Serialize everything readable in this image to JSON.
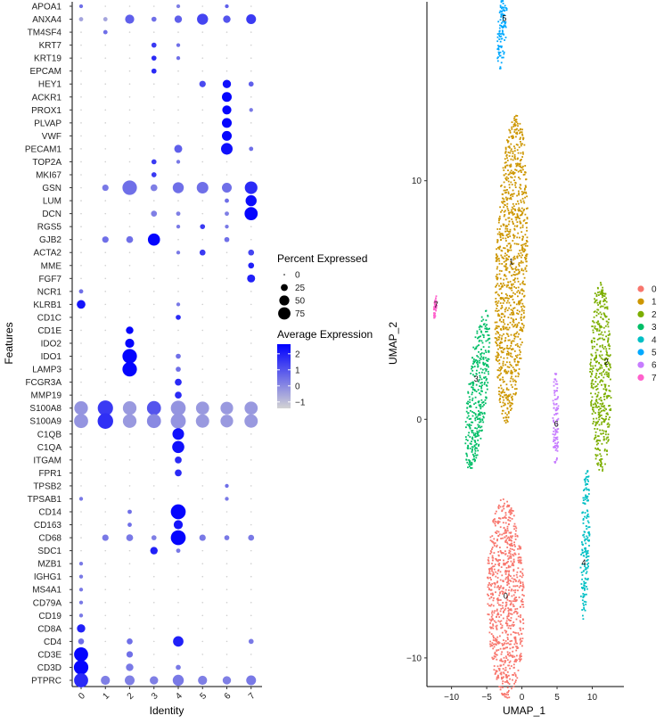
{
  "chart_data": [
    {
      "type": "scatter",
      "subtype": "dot-plot",
      "xlabel": "Identity",
      "ylabel": "Features",
      "identities": [
        "0",
        "1",
        "2",
        "3",
        "4",
        "5",
        "6",
        "7"
      ],
      "features_top_to_bottom": [
        "APOA1",
        "ANXA4",
        "TM4SF4",
        "KRT7",
        "KRT19",
        "EPCAM",
        "HEY1",
        "ACKR1",
        "PROX1",
        "PLVAP",
        "VWF",
        "PECAM1",
        "TOP2A",
        "MKI67",
        "GSN",
        "LUM",
        "DCN",
        "RGS5",
        "GJB2",
        "ACTA2",
        "MME",
        "FGF7",
        "NCR1",
        "KLRB1",
        "CD1C",
        "CD1E",
        "IDO2",
        "IDO1",
        "LAMP3",
        "FCGR3A",
        "MMP19",
        "S100A8",
        "S100A9",
        "C1QB",
        "C1QA",
        "ITGAM",
        "FPR1",
        "TPSB2",
        "TPSAB1",
        "CD14",
        "CD163",
        "CD68",
        "SDC1",
        "MZB1",
        "IGHG1",
        "MS4A1",
        "CD79A",
        "CD19",
        "CD8A",
        "CD4",
        "CD3E",
        "CD3D",
        "PTPRC"
      ],
      "dots_note": "each dot: [feature index, identity index, percent expressed, average expression]",
      "dots": [
        [
          0,
          0,
          2,
          0.5
        ],
        [
          0,
          4,
          2,
          0.2
        ],
        [
          0,
          6,
          2,
          0.8
        ],
        [
          1,
          0,
          3,
          -0.5
        ],
        [
          1,
          1,
          3,
          -0.5
        ],
        [
          1,
          2,
          25,
          0.8
        ],
        [
          1,
          3,
          5,
          0.5
        ],
        [
          1,
          4,
          15,
          0.8
        ],
        [
          1,
          5,
          40,
          1.3
        ],
        [
          1,
          6,
          15,
          1.0
        ],
        [
          1,
          7,
          30,
          1.5
        ],
        [
          2,
          1,
          3,
          0.5
        ],
        [
          3,
          3,
          5,
          1.5
        ],
        [
          3,
          4,
          2,
          0.5
        ],
        [
          4,
          3,
          5,
          1.8
        ],
        [
          4,
          4,
          2,
          0.5
        ],
        [
          5,
          3,
          5,
          1.8
        ],
        [
          6,
          5,
          10,
          1.2
        ],
        [
          6,
          6,
          20,
          2.3
        ],
        [
          6,
          7,
          5,
          0.8
        ],
        [
          7,
          6,
          30,
          2.5
        ],
        [
          8,
          6,
          25,
          2.5
        ],
        [
          8,
          7,
          2,
          0.3
        ],
        [
          9,
          6,
          30,
          2.5
        ],
        [
          10,
          6,
          30,
          2.5
        ],
        [
          11,
          4,
          18,
          0.8
        ],
        [
          11,
          6,
          45,
          2.3
        ],
        [
          11,
          7,
          3,
          0.5
        ],
        [
          12,
          3,
          5,
          1.5
        ],
        [
          12,
          4,
          2,
          0.3
        ],
        [
          13,
          3,
          5,
          1.5
        ],
        [
          14,
          1,
          10,
          0.3
        ],
        [
          14,
          2,
          75,
          0.5
        ],
        [
          14,
          3,
          12,
          0.2
        ],
        [
          14,
          4,
          40,
          0.5
        ],
        [
          14,
          5,
          45,
          0.5
        ],
        [
          14,
          6,
          30,
          0.5
        ],
        [
          14,
          7,
          55,
          1.8
        ],
        [
          15,
          6,
          3,
          0.5
        ],
        [
          15,
          7,
          40,
          2.4
        ],
        [
          16,
          3,
          8,
          0.2
        ],
        [
          16,
          4,
          3,
          0.2
        ],
        [
          16,
          6,
          3,
          0.2
        ],
        [
          16,
          7,
          60,
          2.5
        ],
        [
          17,
          4,
          2,
          0.3
        ],
        [
          17,
          5,
          5,
          1.5
        ],
        [
          17,
          6,
          2,
          0.3
        ],
        [
          18,
          1,
          10,
          0.5
        ],
        [
          18,
          2,
          12,
          0.5
        ],
        [
          18,
          3,
          50,
          2.5
        ],
        [
          18,
          6,
          5,
          0.5
        ],
        [
          19,
          4,
          2,
          0.3
        ],
        [
          19,
          5,
          8,
          1.5
        ],
        [
          19,
          7,
          8,
          1.3
        ],
        [
          20,
          7,
          8,
          2.0
        ],
        [
          21,
          7,
          18,
          2.0
        ],
        [
          22,
          0,
          3,
          0.5
        ],
        [
          23,
          0,
          22,
          2.2
        ],
        [
          23,
          4,
          2,
          0.3
        ],
        [
          24,
          4,
          5,
          1.8
        ],
        [
          25,
          2,
          15,
          2.5
        ],
        [
          26,
          2,
          25,
          2.5
        ],
        [
          27,
          2,
          75,
          2.5
        ],
        [
          27,
          4,
          5,
          0.5
        ],
        [
          28,
          2,
          75,
          2.5
        ],
        [
          28,
          4,
          5,
          0.5
        ],
        [
          29,
          4,
          12,
          1.8
        ],
        [
          30,
          4,
          12,
          1.8
        ],
        [
          31,
          0,
          65,
          -0.2
        ],
        [
          31,
          1,
          85,
          1.5
        ],
        [
          31,
          2,
          65,
          -0.3
        ],
        [
          31,
          3,
          70,
          1.0
        ],
        [
          31,
          4,
          80,
          -0.2
        ],
        [
          31,
          5,
          60,
          -0.3
        ],
        [
          31,
          6,
          55,
          -0.3
        ],
        [
          31,
          7,
          60,
          -0.3
        ],
        [
          32,
          0,
          70,
          -0.2
        ],
        [
          32,
          1,
          88,
          1.7
        ],
        [
          32,
          2,
          65,
          -0.3
        ],
        [
          32,
          3,
          70,
          0.0
        ],
        [
          32,
          4,
          82,
          -0.2
        ],
        [
          32,
          5,
          62,
          -0.3
        ],
        [
          32,
          6,
          55,
          -0.3
        ],
        [
          32,
          7,
          62,
          -0.3
        ],
        [
          33,
          4,
          45,
          2.3
        ],
        [
          34,
          4,
          50,
          2.3
        ],
        [
          35,
          4,
          12,
          1.8
        ],
        [
          36,
          4,
          12,
          1.8
        ],
        [
          37,
          6,
          2,
          0.5
        ],
        [
          38,
          0,
          2,
          0.3
        ],
        [
          38,
          6,
          2,
          0.3
        ],
        [
          39,
          2,
          3,
          0.5
        ],
        [
          39,
          4,
          80,
          2.5
        ],
        [
          40,
          2,
          3,
          0.5
        ],
        [
          40,
          4,
          25,
          2.2
        ],
        [
          41,
          1,
          10,
          0.3
        ],
        [
          41,
          2,
          12,
          0.3
        ],
        [
          41,
          3,
          5,
          0.2
        ],
        [
          41,
          4,
          80,
          2.5
        ],
        [
          41,
          5,
          10,
          0.3
        ],
        [
          41,
          6,
          5,
          0.3
        ],
        [
          41,
          7,
          8,
          0.3
        ],
        [
          42,
          3,
          15,
          2.0
        ],
        [
          42,
          4,
          3,
          0.3
        ],
        [
          43,
          0,
          2,
          0.3
        ],
        [
          44,
          0,
          2,
          0.3
        ],
        [
          45,
          0,
          2,
          0.3
        ],
        [
          46,
          0,
          2,
          0.3
        ],
        [
          47,
          0,
          2,
          0.3
        ],
        [
          48,
          0,
          20,
          2.0
        ],
        [
          49,
          0,
          8,
          0.5
        ],
        [
          49,
          2,
          8,
          0.5
        ],
        [
          49,
          4,
          35,
          2.0
        ],
        [
          49,
          7,
          5,
          0.3
        ],
        [
          50,
          0,
          70,
          2.5
        ],
        [
          50,
          2,
          10,
          0.5
        ],
        [
          51,
          0,
          75,
          2.5
        ],
        [
          51,
          2,
          15,
          0.3
        ],
        [
          51,
          4,
          5,
          0.3
        ],
        [
          52,
          0,
          70,
          1.8
        ],
        [
          52,
          1,
          25,
          0.2
        ],
        [
          52,
          2,
          30,
          0.2
        ],
        [
          52,
          3,
          20,
          0.2
        ],
        [
          52,
          4,
          40,
          0.3
        ],
        [
          52,
          5,
          25,
          0.2
        ],
        [
          52,
          6,
          20,
          0.2
        ],
        [
          52,
          7,
          30,
          0.3
        ]
      ],
      "size_legend": {
        "title": "Percent Expressed",
        "values": [
          0,
          25,
          50,
          75
        ],
        "labels": [
          "0",
          "25",
          "50",
          "75"
        ]
      },
      "color_legend": {
        "title": "Average Expression",
        "range": [
          -1.4,
          2.6
        ],
        "ticks": [
          2,
          1,
          0,
          -1
        ],
        "labels": [
          "2",
          "1",
          "0",
          "−1"
        ],
        "low_color": "#d3d3d3",
        "high_color": "#0000ff"
      }
    },
    {
      "type": "scatter",
      "subtype": "umap",
      "xlabel": "UMAP_1",
      "ylabel": "UMAP_2",
      "xlim": [
        -13.5,
        14.5
      ],
      "ylim": [
        -11.2,
        17.5
      ],
      "xticks": [
        -10,
        -5,
        0,
        5,
        10
      ],
      "xtick_labels": [
        "−10",
        "−5",
        "0",
        "5",
        "10"
      ],
      "yticks": [
        10,
        0,
        -10
      ],
      "ytick_labels": [
        "10",
        "0",
        "−10"
      ],
      "legend_placement": "right",
      "clusters": [
        {
          "name": "0",
          "label": "0",
          "color": "#f8766d",
          "center": [
            -2.3,
            -7.5
          ],
          "major_axis": 4.2,
          "minor_axis": 2.6,
          "angle_deg": 95,
          "label_pos": [
            -2.3,
            -7.4
          ]
        },
        {
          "name": "1",
          "label": "1",
          "color": "#cd9600",
          "center": [
            -1.5,
            6.3
          ],
          "major_axis": 6.5,
          "minor_axis": 2.2,
          "angle_deg": 83,
          "label_pos": [
            -1.5,
            6.6
          ]
        },
        {
          "name": "2",
          "label": "2",
          "color": "#7cae00",
          "center": [
            11.2,
            1.8
          ],
          "major_axis": 4.0,
          "minor_axis": 1.5,
          "angle_deg": 91,
          "label_pos": [
            12.0,
            2.4
          ]
        },
        {
          "name": "3",
          "label": "3",
          "color": "#00be67",
          "center": [
            -6.3,
            1.2
          ],
          "major_axis": 3.6,
          "minor_axis": 1.3,
          "angle_deg": 70,
          "label_pos": [
            -6.5,
            1.7
          ]
        },
        {
          "name": "4",
          "label": "4",
          "color": "#00bfc4",
          "center": [
            9.0,
            -5.2
          ],
          "major_axis": 3.2,
          "minor_axis": 0.6,
          "angle_deg": 85,
          "label_pos": [
            8.8,
            -6.0
          ]
        },
        {
          "name": "5",
          "label": "5",
          "color": "#00a9ff",
          "center": [
            -2.8,
            16.4
          ],
          "major_axis": 1.8,
          "minor_axis": 0.6,
          "angle_deg": 78,
          "label_pos": [
            -2.5,
            16.8
          ]
        },
        {
          "name": "6",
          "label": "6",
          "color": "#c77cff",
          "center": [
            4.8,
            0.0
          ],
          "major_axis": 2.0,
          "minor_axis": 0.4,
          "angle_deg": 90,
          "label_pos": [
            4.9,
            -0.2
          ]
        },
        {
          "name": "7",
          "label": "7",
          "color": "#ff61cc",
          "center": [
            -12.3,
            4.7
          ],
          "major_axis": 0.5,
          "minor_axis": 0.2,
          "angle_deg": 70,
          "label_pos": [
            -12.2,
            4.8
          ]
        }
      ]
    }
  ]
}
